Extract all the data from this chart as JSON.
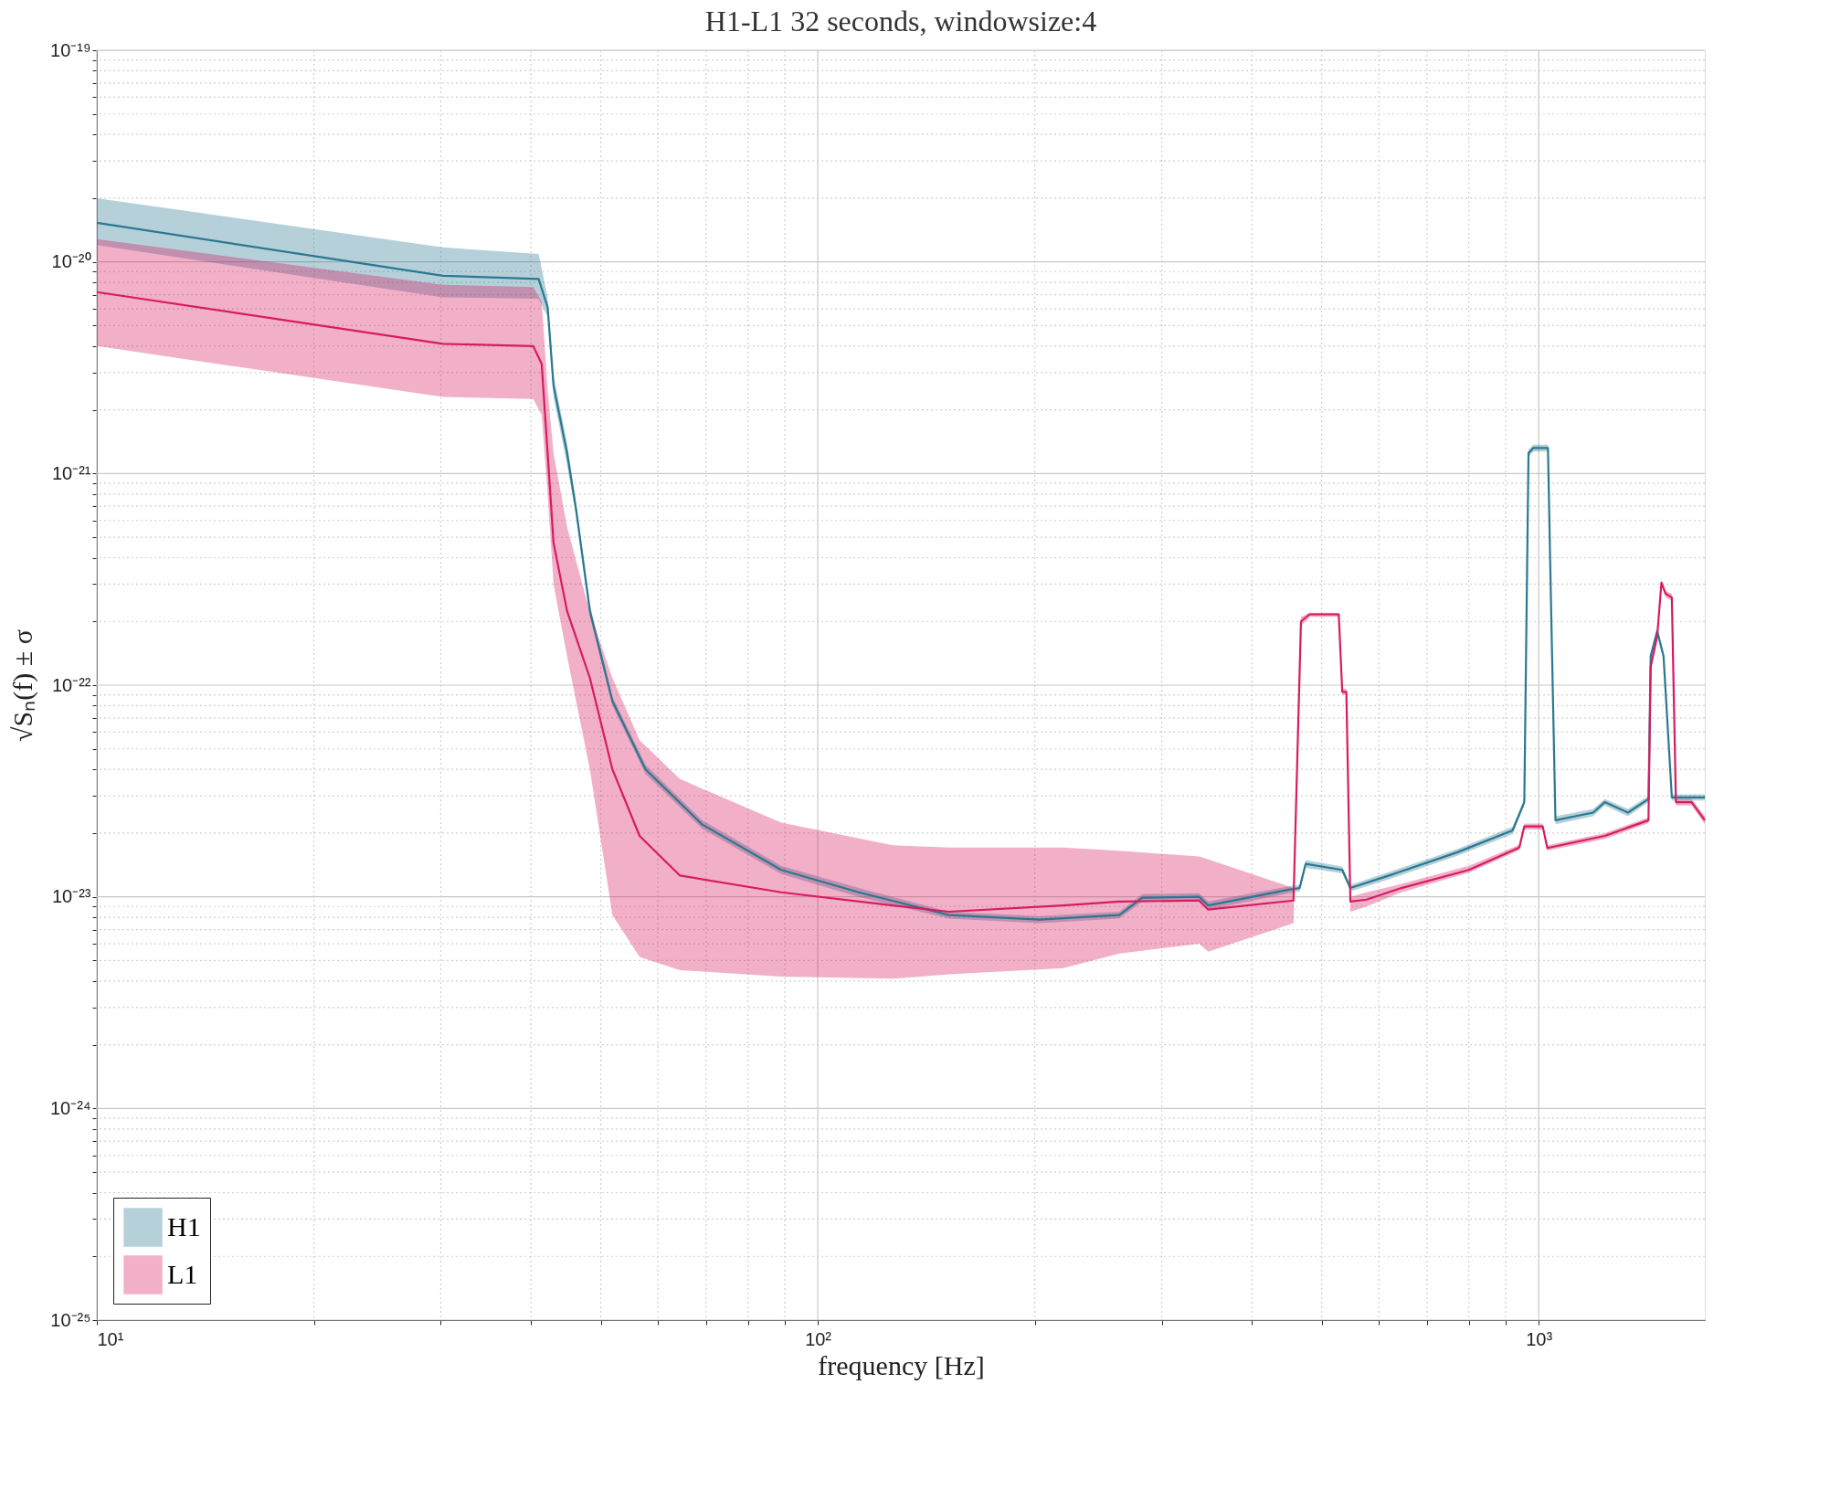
{
  "chart_data": {
    "type": "line",
    "title": "H1-L1  32 seconds,  windowsize:4",
    "xlabel": "frequency [Hz]",
    "ylabel": "√Sₙ(f) ± σ",
    "log": "xy",
    "grid": true,
    "legend": "bottom left",
    "xlim": [
      10,
      1700
    ],
    "ylim": [
      1e-25,
      1e-19
    ],
    "xticks": [
      {
        "value": 10,
        "label": "10¹"
      },
      {
        "value": 20,
        "label": null
      },
      {
        "value": 30,
        "label": null
      },
      {
        "value": 40,
        "label": null
      },
      {
        "value": 50,
        "label": null
      },
      {
        "value": 60,
        "label": null
      },
      {
        "value": 70,
        "label": null
      },
      {
        "value": 80,
        "label": null
      },
      {
        "value": 90,
        "label": null
      },
      {
        "value": 100,
        "label": "10²"
      },
      {
        "value": 200,
        "label": null
      },
      {
        "value": 300,
        "label": null
      },
      {
        "value": 400,
        "label": null
      },
      {
        "value": 500,
        "label": null
      },
      {
        "value": 600,
        "label": null
      },
      {
        "value": 700,
        "label": null
      },
      {
        "value": 800,
        "label": null
      },
      {
        "value": 900,
        "label": null
      },
      {
        "value": 1000,
        "label": "10³"
      }
    ],
    "yticks": [
      {
        "value": 1e-25,
        "label": "10⁻²⁵"
      },
      {
        "value": 2e-25,
        "label": null
      },
      {
        "value": 3e-25,
        "label": null
      },
      {
        "value": 4e-25,
        "label": null
      },
      {
        "value": 5e-25,
        "label": null
      },
      {
        "value": 6e-25,
        "label": null
      },
      {
        "value": 7e-25,
        "label": null
      },
      {
        "value": 8e-25,
        "label": null
      },
      {
        "value": 9e-25,
        "label": null
      },
      {
        "value": 1e-24,
        "label": "10⁻²⁴"
      },
      {
        "value": 2e-24,
        "label": null
      },
      {
        "value": 3e-24,
        "label": null
      },
      {
        "value": 4e-24,
        "label": null
      },
      {
        "value": 5e-24,
        "label": null
      },
      {
        "value": 6e-24,
        "label": null
      },
      {
        "value": 7e-24,
        "label": null
      },
      {
        "value": 8e-24,
        "label": null
      },
      {
        "value": 9e-24,
        "label": null
      },
      {
        "value": 1e-23,
        "label": "10⁻²³"
      },
      {
        "value": 2e-23,
        "label": null
      },
      {
        "value": 3e-23,
        "label": null
      },
      {
        "value": 4e-23,
        "label": null
      },
      {
        "value": 5e-23,
        "label": null
      },
      {
        "value": 6e-23,
        "label": null
      },
      {
        "value": 7e-23,
        "label": null
      },
      {
        "value": 8e-23,
        "label": null
      },
      {
        "value": 9e-23,
        "label": null
      },
      {
        "value": 1e-22,
        "label": "10⁻²²"
      },
      {
        "value": 2e-22,
        "label": null
      },
      {
        "value": 3e-22,
        "label": null
      },
      {
        "value": 4e-22,
        "label": null
      },
      {
        "value": 5e-22,
        "label": null
      },
      {
        "value": 6e-22,
        "label": null
      },
      {
        "value": 7e-22,
        "label": null
      },
      {
        "value": 8e-22,
        "label": null
      },
      {
        "value": 9e-22,
        "label": null
      },
      {
        "value": 1e-21,
        "label": "10⁻²¹"
      },
      {
        "value": 2e-21,
        "label": null
      },
      {
        "value": 3e-21,
        "label": null
      },
      {
        "value": 4e-21,
        "label": null
      },
      {
        "value": 5e-21,
        "label": null
      },
      {
        "value": 6e-21,
        "label": null
      },
      {
        "value": 7e-21,
        "label": null
      },
      {
        "value": 8e-21,
        "label": null
      },
      {
        "value": 9e-21,
        "label": null
      },
      {
        "value": 1e-20,
        "label": "10⁻²⁰"
      },
      {
        "value": 2e-20,
        "label": null
      },
      {
        "value": 3e-20,
        "label": null
      },
      {
        "value": 4e-20,
        "label": null
      },
      {
        "value": 5e-20,
        "label": null
      },
      {
        "value": 6e-20,
        "label": null
      },
      {
        "value": 7e-20,
        "label": null
      },
      {
        "value": 8e-20,
        "label": null
      },
      {
        "value": 9e-20,
        "label": null
      },
      {
        "value": 1e-19,
        "label": "10⁻¹⁹"
      }
    ],
    "series": [
      {
        "name": "H1",
        "color": "#2a7891",
        "x": [
          10,
          30.2,
          41,
          42.2,
          43,
          44.9,
          46.2,
          48.3,
          51.9,
          57.7,
          69.1,
          89,
          114,
          152,
          203,
          262,
          282,
          338,
          348,
          450,
          466,
          475,
          534,
          548,
          620,
          770,
          920,
          955,
          968,
          983,
          1030,
          1040,
          1055,
          1190,
          1235,
          1330,
          1420,
          1430,
          1460,
          1490,
          1530,
          1700
        ],
        "values": [
          1.53e-20,
          8.6e-21,
          8.3e-21,
          6.1e-21,
          2.6e-21,
          1.25e-21,
          6.8e-22,
          2.24e-22,
          8.4e-23,
          4e-23,
          2.2e-23,
          1.34e-23,
          1.05e-23,
          8.2e-24,
          7.8e-24,
          8.2e-24,
          9.9e-24,
          1e-23,
          9.1e-24,
          1.08e-23,
          1.1e-23,
          1.43e-23,
          1.34e-23,
          1.1e-23,
          1.26e-23,
          1.62e-23,
          2.06e-23,
          2.8e-23,
          1.25e-21,
          1.32e-21,
          1.32e-21,
          2.5e-22,
          2.3e-23,
          2.5e-23,
          2.8e-23,
          2.5e-23,
          2.9e-23,
          1.37e-22,
          1.8e-22,
          1.37e-22,
          2.95e-23,
          2.95e-23
        ],
        "lower": [
          1.2e-20,
          6.8e-21,
          6.7e-21,
          5.5e-21,
          2.3e-21,
          1.1e-21,
          6.3e-22,
          2.1e-22,
          8e-23,
          3.8e-23,
          2.1e-23,
          1.28e-23,
          1e-23,
          7.9e-24,
          7.5e-24,
          7.9e-24,
          9.5e-24,
          9.6e-24,
          8.7e-24,
          1.04e-23,
          1.06e-23,
          1.37e-23,
          1.29e-23,
          1.06e-23,
          1.21e-23,
          1.56e-23,
          1.98e-23,
          2.7e-23,
          1.2e-21,
          1.27e-21,
          1.27e-21,
          2.4e-22,
          2.2e-23,
          2.4e-23,
          2.7e-23,
          2.4e-23,
          2.8e-23,
          1.32e-22,
          1.73e-22,
          1.32e-22,
          2.85e-23,
          2.85e-23
        ],
        "upper": [
          2e-20,
          1.17e-20,
          1.09e-20,
          6.8e-21,
          2.9e-21,
          1.4e-21,
          7.3e-22,
          2.4e-22,
          8.8e-23,
          4.2e-23,
          2.3e-23,
          1.4e-23,
          1.1e-23,
          8.5e-24,
          8.1e-24,
          8.5e-24,
          1.03e-23,
          1.04e-23,
          9.5e-24,
          1.12e-23,
          1.14e-23,
          1.49e-23,
          1.39e-23,
          1.14e-23,
          1.31e-23,
          1.68e-23,
          2.14e-23,
          2.9e-23,
          1.3e-21,
          1.37e-21,
          1.37e-21,
          2.6e-22,
          2.4e-23,
          2.6e-23,
          2.9e-23,
          2.6e-23,
          3e-23,
          1.42e-22,
          1.87e-22,
          1.42e-22,
          3.05e-23,
          3.05e-23
        ]
      },
      {
        "name": "L1",
        "color": "#d81b60",
        "x": [
          10,
          30.2,
          40.3,
          41.4,
          42.2,
          43,
          44.9,
          48.3,
          51.9,
          56.6,
          64.4,
          89,
          127,
          152,
          219,
          262,
          338,
          348,
          457,
          468,
          481,
          528,
          534,
          541,
          548,
          577,
          645,
          800,
          940,
          955,
          1013,
          1028,
          1235,
          1420,
          1430,
          1460,
          1480,
          1500,
          1530,
          1550,
          1630,
          1700
        ],
        "values": [
          7.2e-21,
          4.1e-21,
          4e-21,
          3.3e-21,
          1.25e-21,
          4.7e-22,
          2.24e-22,
          1.08e-22,
          4e-23,
          1.94e-23,
          1.26e-23,
          1.05e-23,
          9.1e-24,
          8.5e-24,
          9.1e-24,
          9.5e-24,
          9.6e-24,
          8.7e-24,
          9.6e-24,
          2e-22,
          2.16e-22,
          2.16e-22,
          9.3e-23,
          9.3e-23,
          9.5e-24,
          9.7e-24,
          1.1e-23,
          1.34e-23,
          1.71e-23,
          2.15e-23,
          2.15e-23,
          1.7e-23,
          1.94e-23,
          2.3e-23,
          1.22e-22,
          1.7e-22,
          3.05e-22,
          2.7e-22,
          2.6e-22,
          2.8e-23,
          2.8e-23,
          2.3e-23
        ],
        "lower": [
          4e-21,
          2.3e-21,
          2.25e-21,
          1.9e-21,
          8e-22,
          3e-22,
          1.37e-22,
          4e-23,
          8.2e-24,
          5.2e-24,
          4.5e-24,
          4.2e-24,
          4.1e-24,
          4.3e-24,
          4.6e-24,
          5.4e-24,
          6e-24,
          5.5e-24,
          7.5e-24,
          1.9e-22,
          2.1e-22,
          2.1e-22,
          9e-23,
          9e-23,
          8.5e-24,
          9e-24,
          1.05e-23,
          1.3e-23,
          1.66e-23,
          2.08e-23,
          2.08e-23,
          1.65e-23,
          1.88e-23,
          2.23e-23,
          1.18e-22,
          1.65e-22,
          2.95e-22,
          2.6e-22,
          2.5e-22,
          2.7e-23,
          2.7e-23,
          2.2e-23
        ],
        "upper": [
          1.28e-20,
          7.8e-21,
          7.6e-21,
          6.5e-21,
          2.5e-21,
          1.25e-21,
          5.6e-22,
          2.2e-22,
          1.08e-22,
          5.5e-23,
          3.6e-23,
          2.24e-23,
          1.75e-23,
          1.71e-23,
          1.71e-23,
          1.65e-23,
          1.55e-23,
          1.5e-23,
          1.1e-23,
          2.1e-22,
          2.2e-22,
          2.2e-22,
          9.6e-23,
          9.6e-23,
          1e-23,
          1.05e-23,
          1.15e-23,
          1.4e-23,
          1.76e-23,
          2.22e-23,
          2.22e-23,
          1.75e-23,
          2e-23,
          2.37e-23,
          1.26e-22,
          1.75e-22,
          3.15e-22,
          2.8e-22,
          2.7e-22,
          2.9e-23,
          2.9e-23,
          2.4e-23
        ]
      }
    ]
  }
}
